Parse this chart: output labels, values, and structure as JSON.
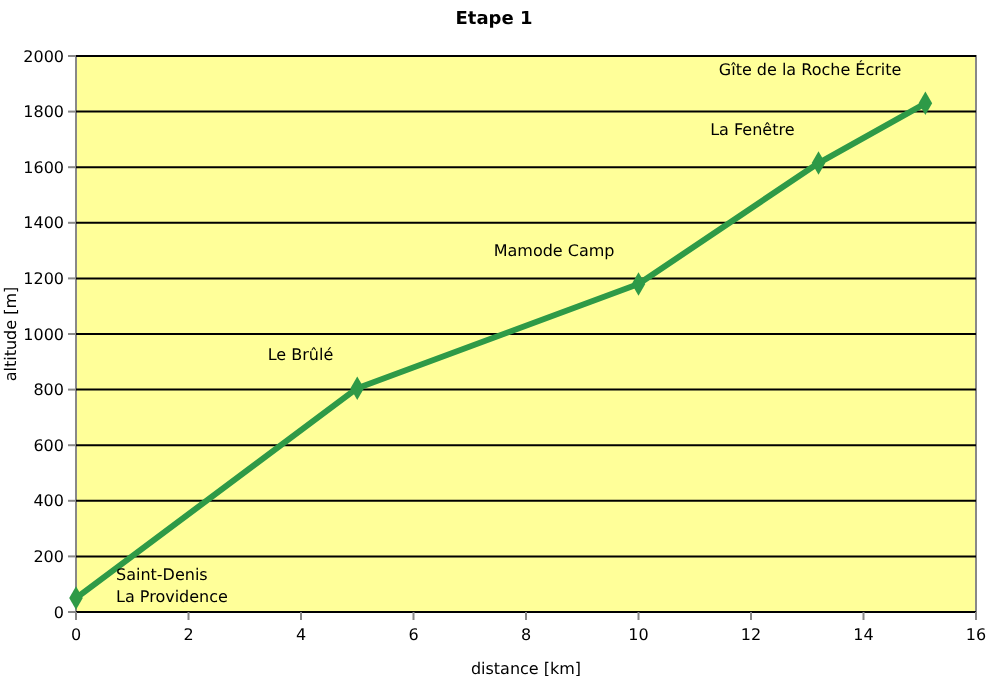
{
  "chart_data": {
    "type": "line",
    "title": "Etape 1",
    "xlabel": "distance [km]",
    "ylabel": "altitude [m]",
    "x": [
      0,
      5,
      10,
      13.2,
      15.1
    ],
    "series": [
      {
        "color": "#2e9a47",
        "values": [
          50,
          805,
          1180,
          1615,
          1830
        ]
      }
    ],
    "xlim": [
      0,
      16
    ],
    "xticks": [
      0,
      2,
      4,
      6,
      8,
      10,
      12,
      14,
      16
    ],
    "ylim": [
      0,
      2000
    ],
    "yticks": [
      0,
      200,
      400,
      600,
      800,
      1000,
      1200,
      1400,
      1600,
      1800,
      2000
    ],
    "grid": "y",
    "marker": "diamond",
    "line_style": "solid",
    "annotations": [
      {
        "text": "Saint-Denis\nLa Providence",
        "x": 0,
        "y": 50
      },
      {
        "text": "Le Brûlé",
        "x": 5,
        "y": 805
      },
      {
        "text": "Mamode Camp",
        "x": 10,
        "y": 1180
      },
      {
        "text": "La Fenêtre",
        "x": 13.2,
        "y": 1615
      },
      {
        "text": "Gîte de la Roche Écrite",
        "x": 15.1,
        "y": 1830
      }
    ]
  }
}
